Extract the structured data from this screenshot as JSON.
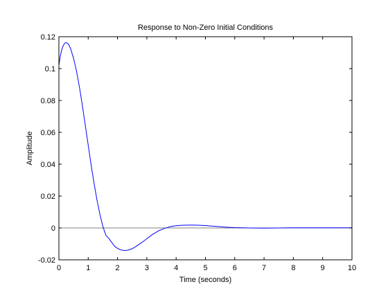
{
  "chart_data": {
    "type": "line",
    "title": "Response to Non-Zero Initial Conditions",
    "xlabel": "Time (seconds)",
    "ylabel": "Amplitude",
    "xlim": [
      0,
      10
    ],
    "ylim": [
      -0.02,
      0.12
    ],
    "xticks": [
      0,
      1,
      2,
      3,
      4,
      5,
      6,
      7,
      8,
      9,
      10
    ],
    "yticks": [
      -0.02,
      0,
      0.02,
      0.04,
      0.06,
      0.08,
      0.1,
      0.12
    ],
    "xtick_labels": [
      "0",
      "1",
      "2",
      "3",
      "4",
      "5",
      "6",
      "7",
      "8",
      "9",
      "10"
    ],
    "ytick_labels": [
      "-0.02",
      "0",
      "0.02",
      "0.04",
      "0.06",
      "0.08",
      "0.1",
      "0.12"
    ],
    "grid": false,
    "reference_line_y": 0,
    "series": [
      {
        "color": "#0000ff",
        "x": [
          0,
          0.05,
          0.1,
          0.15,
          0.2,
          0.25,
          0.3,
          0.35,
          0.4,
          0.5,
          0.6,
          0.7,
          0.8,
          0.9,
          1.0,
          1.1,
          1.2,
          1.3,
          1.4,
          1.5,
          1.6,
          1.7,
          1.8,
          1.9,
          2.0,
          2.1,
          2.2,
          2.3,
          2.4,
          2.5,
          2.6,
          2.8,
          3.0,
          3.2,
          3.4,
          3.6,
          3.8,
          4.0,
          4.2,
          4.4,
          4.6,
          4.8,
          5.0,
          5.2,
          5.4,
          5.6,
          5.8,
          6.0,
          6.5,
          7.0,
          7.5,
          8.0,
          8.5,
          9.0,
          9.5,
          10.0
        ],
        "y": [
          0.102,
          0.108,
          0.112,
          0.1145,
          0.116,
          0.1163,
          0.1158,
          0.1145,
          0.1125,
          0.1065,
          0.0985,
          0.0885,
          0.077,
          0.0645,
          0.052,
          0.0395,
          0.028,
          0.0175,
          0.0085,
          0.001,
          -0.0045,
          -0.0065,
          -0.009,
          -0.0115,
          -0.0128,
          -0.0137,
          -0.0141,
          -0.0141,
          -0.0137,
          -0.013,
          -0.012,
          -0.0095,
          -0.0068,
          -0.004,
          -0.0018,
          -0.0003,
          0.0008,
          0.0014,
          0.0017,
          0.0018,
          0.0018,
          0.0017,
          0.0015,
          0.0012,
          0.0009,
          0.0006,
          0.0004,
          0.0002,
          0.0,
          -0.0001,
          0.0,
          0.0001,
          0.0001,
          0.0001,
          0.0001,
          0.0001
        ]
      }
    ]
  }
}
